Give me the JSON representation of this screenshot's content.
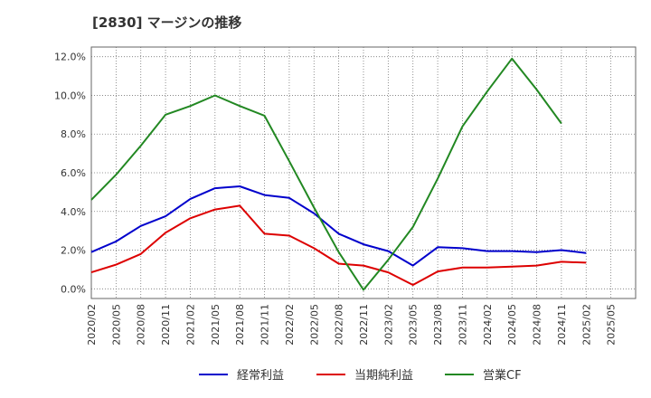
{
  "chart_data": {
    "type": "line",
    "title": "[2830]  マージンの推移",
    "xlabel": "",
    "ylabel": "",
    "ylim": [
      -0.5,
      12.5
    ],
    "grid": true,
    "legend_position": "bottom",
    "x_tick_labels": [
      "2020/02",
      "2020/05",
      "2020/08",
      "2020/11",
      "2021/02",
      "2021/05",
      "2021/08",
      "2021/11",
      "2022/02",
      "2022/05",
      "2022/08",
      "2022/11",
      "2023/02",
      "2023/05",
      "2023/08",
      "2023/11",
      "2024/02",
      "2024/05",
      "2024/08",
      "2024/11",
      "2025/02",
      "2025/05"
    ],
    "y_ticks": [
      0,
      2,
      4,
      6,
      8,
      10,
      12
    ],
    "y_tick_labels": [
      "0.0%",
      "2.0%",
      "4.0%",
      "6.0%",
      "8.0%",
      "10.0%",
      "12.0%"
    ],
    "series": [
      {
        "name": "経常利益",
        "color": "#0000cc",
        "x": [
          "2020/02",
          "2020/05",
          "2020/08",
          "2020/11",
          "2021/02",
          "2021/05",
          "2021/08",
          "2021/11",
          "2022/02",
          "2022/05",
          "2022/08",
          "2022/11",
          "2023/02",
          "2023/05",
          "2023/08",
          "2023/11",
          "2024/02",
          "2024/05",
          "2024/08",
          "2024/11",
          "2025/02"
        ],
        "values": [
          1.9,
          2.45,
          3.25,
          3.75,
          4.65,
          5.2,
          5.3,
          4.85,
          4.7,
          3.9,
          2.85,
          2.3,
          1.95,
          1.2,
          2.15,
          2.1,
          1.95,
          1.95,
          1.9,
          2.0,
          1.85
        ]
      },
      {
        "name": "当期純利益",
        "color": "#dd0000",
        "x": [
          "2020/02",
          "2020/05",
          "2020/08",
          "2020/11",
          "2021/02",
          "2021/05",
          "2021/08",
          "2021/11",
          "2022/02",
          "2022/05",
          "2022/08",
          "2022/11",
          "2023/02",
          "2023/05",
          "2023/08",
          "2023/11",
          "2024/02",
          "2024/05",
          "2024/08",
          "2024/11",
          "2025/02"
        ],
        "values": [
          0.85,
          1.25,
          1.8,
          2.9,
          3.65,
          4.1,
          4.3,
          2.85,
          2.75,
          2.1,
          1.3,
          1.2,
          0.85,
          0.2,
          0.9,
          1.1,
          1.1,
          1.15,
          1.2,
          1.4,
          1.35
        ]
      },
      {
        "name": "営業CF",
        "color": "#228822",
        "x": [
          "2020/02",
          "2020/05",
          "2020/08",
          "2020/11",
          "2021/02",
          "2021/05",
          "2021/08",
          "2021/11",
          "2022/02",
          "2022/05",
          "2022/08",
          "2022/11",
          "2023/02",
          "2023/05",
          "2023/08",
          "2023/11",
          "2024/02",
          "2024/05",
          "2024/08",
          "2024/11"
        ],
        "values": [
          4.6,
          5.9,
          7.4,
          9.0,
          9.45,
          10.0,
          9.45,
          8.95,
          6.6,
          4.2,
          1.9,
          -0.05,
          1.5,
          3.2,
          5.7,
          8.4,
          10.2,
          11.9,
          10.3,
          8.55
        ]
      }
    ]
  }
}
